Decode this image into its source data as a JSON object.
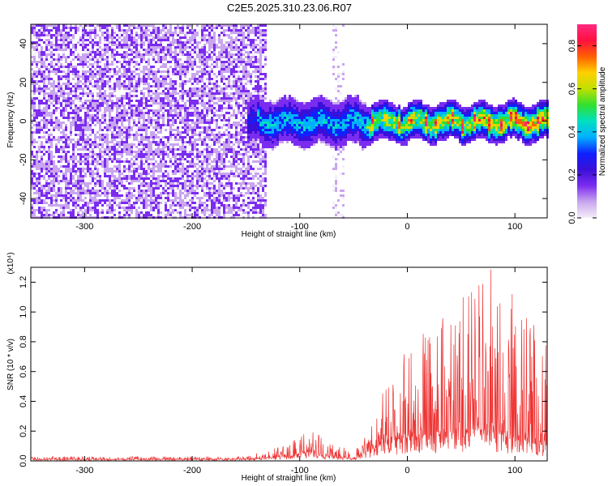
{
  "page_title": "C2E5.2025.310.23.06.R07",
  "colors": {
    "snr_line": "#ee3333",
    "axis": "#000000",
    "background": "#ffffff"
  },
  "chart_data": [
    {
      "type": "heatmap",
      "name": "spectrogram",
      "title": "C2E5.2025.310.23.06.R07",
      "xlabel": "Height of straight line (km)",
      "ylabel": "Frequency (Hz)",
      "xlim": [
        -350,
        130
      ],
      "ylim": [
        -50,
        50
      ],
      "xticks": [
        -300,
        -200,
        -100,
        0,
        100
      ],
      "xtick_labels": [
        "-300",
        "-200",
        "-100",
        "0",
        "100"
      ],
      "yticks": [
        -40,
        -20,
        0,
        20,
        40
      ],
      "ytick_labels": [
        "-40",
        "-20",
        "0",
        "20",
        "40"
      ],
      "description_regions": [
        {
          "x_range": [
            -350,
            -130
          ],
          "level": "diffuse noise 0.0-0.15"
        },
        {
          "x_range": [
            -150,
            -40
          ],
          "level": "signal near 0 Hz, 0.1-0.45"
        },
        {
          "x_range": [
            -40,
            130
          ],
          "level": "signal near 0 Hz, 0.3-0.9"
        }
      ],
      "colorbar": {
        "label": "Normalized spectral amplitude",
        "range": [
          0.0,
          0.9
        ],
        "ticks": [
          0.0,
          0.2,
          0.4,
          0.6,
          0.8
        ],
        "tick_labels": [
          "0.0",
          "0.2",
          "0.4",
          "0.6",
          "0.8"
        ],
        "colors": [
          "#f4eefa",
          "#c9a6ee",
          "#7b2cf0",
          "#3a10d8",
          "#1020ff",
          "#00b0ff",
          "#00e0c0",
          "#30e030",
          "#c0e000",
          "#ffd000",
          "#ff6000",
          "#ff1040",
          "#ff2a80"
        ]
      }
    },
    {
      "type": "line",
      "name": "snr",
      "xlabel": "Height of straight line (km)",
      "ylabel": "SNR (10 * v/v)",
      "y_multiplier": "(x10⁴)",
      "xlim": [
        -350,
        130
      ],
      "ylim": [
        0.0,
        1.3
      ],
      "xticks": [
        -300,
        -200,
        -100,
        0,
        100
      ],
      "xtick_labels": [
        "-300",
        "-200",
        "-100",
        "0",
        "100"
      ],
      "yticks": [
        0.0,
        0.2,
        0.4,
        0.6,
        0.8,
        1.0,
        1.2
      ],
      "ytick_labels": [
        "0.0",
        "0.2",
        "0.4",
        "0.6",
        "0.8",
        "1.0",
        "1.2"
      ],
      "series": [
        {
          "name": "SNR",
          "envelope": [
            {
              "x": -350,
              "baseline": 0.01,
              "peak": 0.03
            },
            {
              "x": -150,
              "baseline": 0.01,
              "peak": 0.03
            },
            {
              "x": -110,
              "baseline": 0.03,
              "peak": 0.12
            },
            {
              "x": -100,
              "baseline": 0.05,
              "peak": 0.17
            },
            {
              "x": -90,
              "baseline": 0.06,
              "peak": 0.22
            },
            {
              "x": -75,
              "baseline": 0.03,
              "peak": 0.14
            },
            {
              "x": -50,
              "baseline": 0.01,
              "peak": 0.06
            },
            {
              "x": -35,
              "baseline": 0.06,
              "peak": 0.2
            },
            {
              "x": -20,
              "baseline": 0.12,
              "peak": 0.55
            },
            {
              "x": 0,
              "baseline": 0.15,
              "peak": 0.75
            },
            {
              "x": 20,
              "baseline": 0.15,
              "peak": 0.9
            },
            {
              "x": 45,
              "baseline": 0.2,
              "peak": 1.1
            },
            {
              "x": 75,
              "baseline": 0.2,
              "peak": 1.3
            },
            {
              "x": 95,
              "baseline": 0.15,
              "peak": 1.2
            },
            {
              "x": 130,
              "baseline": 0.1,
              "peak": 0.8
            }
          ]
        }
      ]
    }
  ]
}
